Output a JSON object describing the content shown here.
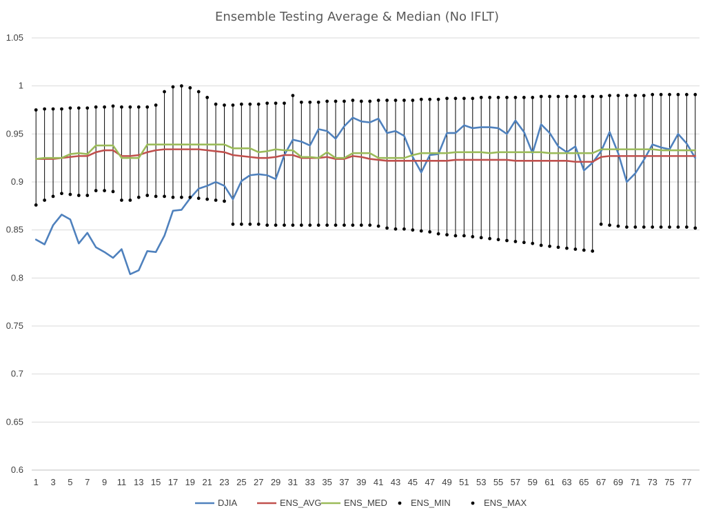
{
  "chart_data": {
    "type": "line",
    "title": "Ensemble Testing Average & Median (No IFLT)",
    "xlabel": "",
    "ylabel": "",
    "ylim": [
      0.6,
      1.05
    ],
    "yticks": [
      "0.6",
      "0.65",
      "0.7",
      "0.75",
      "0.8",
      "0.85",
      "0.9",
      "0.95",
      "1",
      "1.05"
    ],
    "x": [
      1,
      2,
      3,
      4,
      5,
      6,
      7,
      8,
      9,
      10,
      11,
      12,
      13,
      14,
      15,
      16,
      17,
      18,
      19,
      20,
      21,
      22,
      23,
      24,
      25,
      26,
      27,
      28,
      29,
      30,
      31,
      32,
      33,
      34,
      35,
      36,
      37,
      38,
      39,
      40,
      41,
      42,
      43,
      44,
      45,
      46,
      47,
      48,
      49,
      50,
      51,
      52,
      53,
      54,
      55,
      56,
      57,
      58,
      59,
      60,
      61,
      62,
      63,
      64,
      65,
      66,
      67,
      68,
      69,
      70,
      71,
      72,
      73,
      74,
      75,
      76,
      77,
      78
    ],
    "xtick_labels": [
      "1",
      "3",
      "5",
      "7",
      "9",
      "11",
      "13",
      "15",
      "17",
      "19",
      "21",
      "23",
      "25",
      "27",
      "29",
      "31",
      "33",
      "35",
      "37",
      "39",
      "41",
      "43",
      "45",
      "47",
      "49",
      "51",
      "53",
      "55",
      "57",
      "59",
      "61",
      "63",
      "65",
      "67",
      "69",
      "71",
      "73",
      "75",
      "77"
    ],
    "grid": true,
    "legend_position": "bottom",
    "series": [
      {
        "name": "DJIA",
        "style": "line",
        "color": "#4f81bd",
        "values": [
          0.84,
          0.835,
          0.855,
          0.866,
          0.861,
          0.836,
          0.847,
          0.832,
          0.827,
          0.821,
          0.83,
          0.804,
          0.808,
          0.828,
          0.827,
          0.844,
          0.87,
          0.871,
          0.883,
          0.893,
          0.896,
          0.9,
          0.896,
          0.882,
          0.901,
          0.907,
          0.908,
          0.907,
          0.903,
          0.928,
          0.944,
          0.942,
          0.938,
          0.955,
          0.953,
          0.945,
          0.958,
          0.967,
          0.963,
          0.962,
          0.966,
          0.951,
          0.953,
          0.948,
          0.926,
          0.91,
          0.928,
          0.929,
          0.951,
          0.951,
          0.959,
          0.956,
          0.957,
          0.957,
          0.956,
          0.95,
          0.964,
          0.952,
          0.93,
          0.96,
          0.951,
          0.937,
          0.931,
          0.937,
          0.912,
          0.92,
          0.932,
          0.952,
          0.93,
          0.9,
          0.909,
          0.923,
          0.939,
          0.936,
          0.934,
          0.95,
          0.94,
          0.925
        ]
      },
      {
        "name": "ENS_AVG",
        "style": "line",
        "color": "#c0504d",
        "values": [
          0.924,
          0.924,
          0.924,
          0.925,
          0.926,
          0.927,
          0.927,
          0.931,
          0.933,
          0.933,
          0.927,
          0.927,
          0.928,
          0.931,
          0.933,
          0.934,
          0.934,
          0.934,
          0.934,
          0.934,
          0.933,
          0.932,
          0.931,
          0.928,
          0.927,
          0.926,
          0.925,
          0.925,
          0.926,
          0.928,
          0.928,
          0.925,
          0.925,
          0.925,
          0.926,
          0.924,
          0.924,
          0.927,
          0.926,
          0.924,
          0.923,
          0.922,
          0.922,
          0.922,
          0.922,
          0.922,
          0.922,
          0.922,
          0.922,
          0.923,
          0.923,
          0.923,
          0.923,
          0.923,
          0.923,
          0.923,
          0.922,
          0.922,
          0.922,
          0.922,
          0.922,
          0.922,
          0.922,
          0.921,
          0.921,
          0.921,
          0.926,
          0.927,
          0.927,
          0.927,
          0.927,
          0.927,
          0.927,
          0.927,
          0.927,
          0.927,
          0.927,
          0.927
        ]
      },
      {
        "name": "ENS_MED",
        "style": "line",
        "color": "#9bbb59",
        "values": [
          0.924,
          0.925,
          0.925,
          0.925,
          0.929,
          0.93,
          0.929,
          0.938,
          0.938,
          0.938,
          0.925,
          0.925,
          0.925,
          0.939,
          0.939,
          0.939,
          0.939,
          0.939,
          0.939,
          0.939,
          0.939,
          0.939,
          0.939,
          0.935,
          0.935,
          0.935,
          0.931,
          0.932,
          0.934,
          0.933,
          0.933,
          0.926,
          0.926,
          0.925,
          0.931,
          0.925,
          0.925,
          0.93,
          0.93,
          0.93,
          0.925,
          0.925,
          0.925,
          0.925,
          0.928,
          0.93,
          0.93,
          0.93,
          0.93,
          0.931,
          0.931,
          0.931,
          0.931,
          0.93,
          0.931,
          0.931,
          0.931,
          0.931,
          0.931,
          0.931,
          0.93,
          0.93,
          0.93,
          0.93,
          0.93,
          0.93,
          0.934,
          0.934,
          0.934,
          0.934,
          0.934,
          0.934,
          0.934,
          0.933,
          0.933,
          0.933,
          0.933,
          0.933
        ]
      },
      {
        "name": "ENS_MIN",
        "style": "marker",
        "color": "#000000",
        "values": [
          0.876,
          0.881,
          0.885,
          0.888,
          0.887,
          0.886,
          0.886,
          0.891,
          0.891,
          0.89,
          0.881,
          0.881,
          0.884,
          0.886,
          0.885,
          0.885,
          0.884,
          0.884,
          0.884,
          0.883,
          0.882,
          0.881,
          0.88,
          0.856,
          0.856,
          0.856,
          0.856,
          0.855,
          0.855,
          0.855,
          0.855,
          0.855,
          0.855,
          0.855,
          0.855,
          0.855,
          0.855,
          0.855,
          0.855,
          0.855,
          0.854,
          0.852,
          0.851,
          0.851,
          0.85,
          0.849,
          0.848,
          0.846,
          0.845,
          0.844,
          0.844,
          0.843,
          0.842,
          0.841,
          0.84,
          0.839,
          0.838,
          0.837,
          0.836,
          0.834,
          0.833,
          0.832,
          0.831,
          0.83,
          0.829,
          0.828,
          0.856,
          0.855,
          0.854,
          0.853,
          0.853,
          0.853,
          0.853,
          0.853,
          0.853,
          0.853,
          0.853,
          0.852
        ]
      },
      {
        "name": "ENS_MAX",
        "style": "marker",
        "color": "#000000",
        "values": [
          0.975,
          0.976,
          0.976,
          0.976,
          0.977,
          0.977,
          0.977,
          0.978,
          0.978,
          0.979,
          0.978,
          0.978,
          0.978,
          0.978,
          0.98,
          0.994,
          0.999,
          1.0,
          0.998,
          0.994,
          0.988,
          0.981,
          0.98,
          0.98,
          0.981,
          0.981,
          0.981,
          0.982,
          0.982,
          0.982,
          0.99,
          0.983,
          0.983,
          0.983,
          0.984,
          0.984,
          0.984,
          0.985,
          0.984,
          0.984,
          0.985,
          0.985,
          0.985,
          0.985,
          0.985,
          0.986,
          0.986,
          0.986,
          0.987,
          0.987,
          0.987,
          0.987,
          0.988,
          0.988,
          0.988,
          0.988,
          0.988,
          0.988,
          0.988,
          0.989,
          0.989,
          0.989,
          0.989,
          0.989,
          0.989,
          0.989,
          0.989,
          0.99,
          0.99,
          0.99,
          0.99,
          0.99,
          0.991,
          0.991,
          0.991,
          0.991,
          0.991,
          0.991
        ]
      }
    ]
  }
}
